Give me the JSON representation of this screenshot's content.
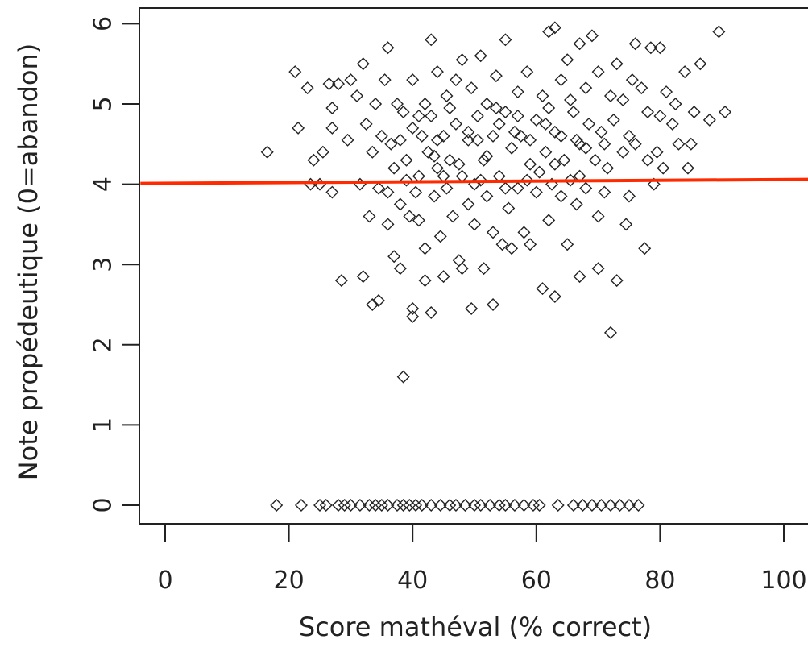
{
  "chart_data": {
    "type": "scatter",
    "title": "",
    "xlabel": "Score mathéval (% correct)",
    "ylabel": "Note propédeutique (0=abandon)",
    "xlim": [
      -4,
      100
    ],
    "ylim": [
      -0.25,
      6.15
    ],
    "xticks": [
      0,
      20,
      40,
      60,
      80,
      100
    ],
    "yticks": [
      0,
      1,
      2,
      3,
      4,
      5,
      6
    ],
    "grid": false,
    "legend": "none",
    "marker": "open-diamond",
    "point_color": "#222222",
    "series": [
      {
        "values": [
          [
            16.5,
            4.4
          ],
          [
            18,
            0
          ],
          [
            21,
            5.4
          ],
          [
            21.5,
            4.7
          ],
          [
            22,
            0
          ],
          [
            23,
            5.2
          ],
          [
            23.5,
            4.0
          ],
          [
            24,
            4.3
          ],
          [
            25,
            0
          ],
          [
            25,
            4.0
          ],
          [
            25.5,
            4.4
          ],
          [
            26,
            0
          ],
          [
            26.5,
            5.25
          ],
          [
            27,
            4.7
          ],
          [
            27,
            3.9
          ],
          [
            27,
            4.95
          ],
          [
            28,
            0
          ],
          [
            28,
            5.25
          ],
          [
            28.5,
            2.8
          ],
          [
            29,
            0
          ],
          [
            29.5,
            4.55
          ],
          [
            30,
            5.3
          ],
          [
            30,
            0
          ],
          [
            31,
            5.1
          ],
          [
            31.5,
            4.0
          ],
          [
            31.5,
            0
          ],
          [
            32,
            2.85
          ],
          [
            32,
            5.5
          ],
          [
            32.5,
            4.75
          ],
          [
            33,
            0
          ],
          [
            33,
            3.6
          ],
          [
            33.5,
            2.5
          ],
          [
            33.5,
            4.4
          ],
          [
            34,
            5.0
          ],
          [
            34,
            0
          ],
          [
            34.5,
            2.55
          ],
          [
            34.5,
            3.95
          ],
          [
            35,
            0
          ],
          [
            35,
            4.6
          ],
          [
            35.5,
            5.3
          ],
          [
            36,
            3.5
          ],
          [
            36,
            5.7
          ],
          [
            36,
            0
          ],
          [
            36.5,
            4.5
          ],
          [
            37,
            4.2
          ],
          [
            37,
            3.1
          ],
          [
            37.5,
            0
          ],
          [
            37.5,
            5.0
          ],
          [
            38,
            2.95
          ],
          [
            38,
            3.75
          ],
          [
            38.5,
            4.9
          ],
          [
            38.5,
            1.6
          ],
          [
            38.5,
            0
          ],
          [
            39,
            4.3
          ],
          [
            39.5,
            3.6
          ],
          [
            39.5,
            0
          ],
          [
            40,
            2.35
          ],
          [
            40,
            2.45
          ],
          [
            40,
            4.7
          ],
          [
            40,
            5.3
          ],
          [
            40.5,
            3.9
          ],
          [
            40.5,
            0
          ],
          [
            41,
            4.1
          ],
          [
            41,
            3.55
          ],
          [
            41.5,
            0
          ],
          [
            41.5,
            4.6
          ],
          [
            42,
            2.8
          ],
          [
            42,
            3.2
          ],
          [
            42,
            5.0
          ],
          [
            42.5,
            4.4
          ],
          [
            43,
            2.4
          ],
          [
            43,
            5.8
          ],
          [
            43,
            4.85
          ],
          [
            43,
            0
          ],
          [
            43.5,
            3.85
          ],
          [
            44,
            4.2
          ],
          [
            44,
            5.4
          ],
          [
            44.5,
            0
          ],
          [
            44.5,
            3.35
          ],
          [
            45,
            4.6
          ],
          [
            45,
            2.85
          ],
          [
            45.5,
            5.1
          ],
          [
            45.5,
            3.95
          ],
          [
            46,
            0
          ],
          [
            46,
            4.3
          ],
          [
            46.5,
            3.6
          ],
          [
            47,
            4.75
          ],
          [
            47,
            5.3
          ],
          [
            47,
            0
          ],
          [
            47.5,
            3.05
          ],
          [
            48,
            4.1
          ],
          [
            48,
            2.95
          ],
          [
            48,
            5.55
          ],
          [
            48.5,
            0
          ],
          [
            49,
            3.75
          ],
          [
            49,
            4.55
          ],
          [
            49.5,
            2.45
          ],
          [
            49.5,
            5.2
          ],
          [
            50,
            0
          ],
          [
            50,
            4.0
          ],
          [
            50,
            3.5
          ],
          [
            50.5,
            4.85
          ],
          [
            51,
            5.6
          ],
          [
            51,
            0
          ],
          [
            51.5,
            2.95
          ],
          [
            51.5,
            4.3
          ],
          [
            52,
            3.85
          ],
          [
            52,
            5.0
          ],
          [
            52.5,
            0
          ],
          [
            53,
            2.5
          ],
          [
            53,
            4.6
          ],
          [
            53,
            3.4
          ],
          [
            53.5,
            5.35
          ],
          [
            54,
            0
          ],
          [
            54,
            4.1
          ],
          [
            54.5,
            3.25
          ],
          [
            55,
            4.9
          ],
          [
            55,
            5.8
          ],
          [
            55,
            0
          ],
          [
            55.5,
            3.7
          ],
          [
            56,
            4.45
          ],
          [
            56,
            3.2
          ],
          [
            56.5,
            0
          ],
          [
            57,
            5.15
          ],
          [
            57,
            3.95
          ],
          [
            57.5,
            4.6
          ],
          [
            58,
            0
          ],
          [
            58,
            3.4
          ],
          [
            58.5,
            5.4
          ],
          [
            59,
            4.25
          ],
          [
            59,
            3.25
          ],
          [
            59.5,
            0
          ],
          [
            60,
            4.8
          ],
          [
            60,
            3.9
          ],
          [
            60.5,
            0
          ],
          [
            61,
            5.1
          ],
          [
            61,
            2.7
          ],
          [
            61.5,
            4.4
          ],
          [
            62,
            5.9
          ],
          [
            62,
            3.55
          ],
          [
            62.5,
            4.0
          ],
          [
            63,
            5.95
          ],
          [
            63,
            2.6
          ],
          [
            63,
            4.65
          ],
          [
            63.5,
            0
          ],
          [
            64,
            5.3
          ],
          [
            64,
            3.85
          ],
          [
            64.5,
            4.3
          ],
          [
            65,
            3.25
          ],
          [
            65,
            5.55
          ],
          [
            65.5,
            4.05
          ],
          [
            66,
            4.9
          ],
          [
            66,
            0
          ],
          [
            66.5,
            3.75
          ],
          [
            67,
            5.75
          ],
          [
            67,
            2.85
          ],
          [
            67,
            4.5
          ],
          [
            67.5,
            0
          ],
          [
            68,
            5.2
          ],
          [
            68,
            3.95
          ],
          [
            68.5,
            4.75
          ],
          [
            69,
            5.85
          ],
          [
            69,
            0
          ],
          [
            69.5,
            4.3
          ],
          [
            70,
            3.6
          ],
          [
            70,
            2.95
          ],
          [
            70,
            5.4
          ],
          [
            70.5,
            0
          ],
          [
            71,
            4.5
          ],
          [
            71,
            3.9
          ],
          [
            71.5,
            4.2
          ],
          [
            72,
            2.15
          ],
          [
            72,
            5.1
          ],
          [
            72,
            0
          ],
          [
            72.5,
            4.8
          ],
          [
            73,
            2.8
          ],
          [
            73,
            5.5
          ],
          [
            73.5,
            0
          ],
          [
            74,
            4.4
          ],
          [
            74,
            5.05
          ],
          [
            74.5,
            3.5
          ],
          [
            75,
            3.85
          ],
          [
            75,
            4.6
          ],
          [
            75,
            0
          ],
          [
            75.5,
            5.3
          ],
          [
            76,
            5.75
          ],
          [
            76,
            4.5
          ],
          [
            76.5,
            0
          ],
          [
            77,
            5.2
          ],
          [
            77.5,
            3.2
          ],
          [
            78,
            4.3
          ],
          [
            78,
            4.9
          ],
          [
            78.5,
            5.7
          ],
          [
            79,
            4.0
          ],
          [
            79.5,
            4.4
          ],
          [
            80,
            5.7
          ],
          [
            80,
            4.85
          ],
          [
            80.5,
            4.2
          ],
          [
            81,
            5.15
          ],
          [
            82,
            4.75
          ],
          [
            82.5,
            5.0
          ],
          [
            83,
            4.5
          ],
          [
            84,
            5.4
          ],
          [
            84.5,
            4.2
          ],
          [
            85,
            4.5
          ],
          [
            85.5,
            4.9
          ],
          [
            86.5,
            5.5
          ],
          [
            88,
            4.8
          ],
          [
            89.5,
            5.9
          ],
          [
            90.5,
            4.9
          ],
          [
            44,
            4.55
          ],
          [
            46,
            4.95
          ],
          [
            49,
            4.65
          ],
          [
            52,
            4.35
          ],
          [
            54,
            4.75
          ],
          [
            57,
            4.85
          ],
          [
            59,
            4.55
          ],
          [
            61.5,
            4.75
          ],
          [
            64,
            4.6
          ],
          [
            66.5,
            4.55
          ],
          [
            38,
            4.55
          ],
          [
            41,
            4.85
          ],
          [
            43.5,
            4.35
          ],
          [
            47.5,
            4.25
          ],
          [
            50.5,
            4.55
          ],
          [
            53.5,
            4.95
          ],
          [
            56.5,
            4.65
          ],
          [
            58.5,
            4.05
          ],
          [
            62,
            4.95
          ],
          [
            65.5,
            5.05
          ],
          [
            68,
            4.45
          ],
          [
            70.5,
            4.65
          ],
          [
            36,
            3.9
          ],
          [
            39,
            4.05
          ],
          [
            45,
            4.1
          ],
          [
            51,
            4.05
          ],
          [
            55,
            3.95
          ],
          [
            60.5,
            4.15
          ],
          [
            63,
            4.25
          ],
          [
            67,
            4.1
          ]
        ]
      }
    ],
    "trend_line": {
      "color": "#ff2a00",
      "points": [
        [
          -4,
          4.01
        ],
        [
          104,
          4.06
        ]
      ]
    }
  }
}
